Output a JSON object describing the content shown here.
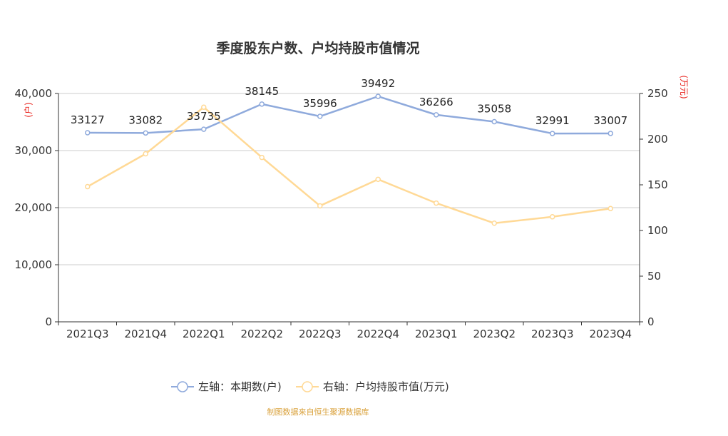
{
  "chart_data": {
    "type": "line",
    "title": "季度股东户数、户均持股市值情况",
    "categories": [
      "2021Q3",
      "2021Q4",
      "2022Q1",
      "2022Q2",
      "2022Q3",
      "2022Q4",
      "2023Q1",
      "2023Q2",
      "2023Q3",
      "2023Q4"
    ],
    "series": [
      {
        "name": "左轴：本期数(户)",
        "axis": "left",
        "color": "#8faadc",
        "values": [
          33127,
          33082,
          33735,
          38145,
          35996,
          39492,
          36266,
          35058,
          32991,
          33007
        ],
        "data_labels": [
          "33127",
          "33082",
          "33735",
          "38145",
          "35996",
          "39492",
          "36266",
          "35058",
          "32991",
          "33007"
        ]
      },
      {
        "name": "右轴：户均持股市值(万元)",
        "axis": "right",
        "color": "#ffd996",
        "values": [
          148,
          184,
          235,
          180,
          127,
          156,
          130,
          108,
          115,
          124
        ]
      }
    ],
    "y_left": {
      "label": "(户)",
      "ylim": [
        0,
        40000
      ],
      "ticks": [
        0,
        10000,
        20000,
        30000,
        40000
      ],
      "tick_labels": [
        "0",
        "10,000",
        "20,000",
        "30,000",
        "40,000"
      ]
    },
    "y_right": {
      "label": "(万元)",
      "ylim": [
        0,
        250
      ],
      "ticks": [
        0,
        50,
        100,
        150,
        200,
        250
      ],
      "tick_labels": [
        "0",
        "50",
        "100",
        "150",
        "200",
        "250"
      ]
    },
    "grid": true,
    "legend_position": "bottom-center",
    "source_note": "制图数据来自恒生聚源数据库"
  }
}
